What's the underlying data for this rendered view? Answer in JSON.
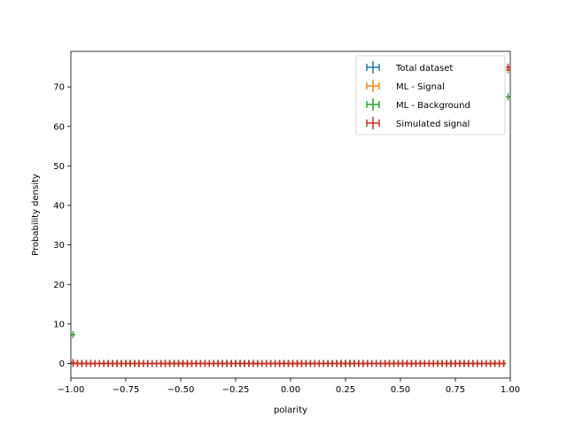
{
  "chart_data": {
    "type": "scatter",
    "xlabel": "polarity",
    "ylabel": "Probability density",
    "xlim": [
      -1.0,
      1.0
    ],
    "ylim": [
      -3.7,
      79.0
    ],
    "x_ticks": [
      "−1.00",
      "−0.75",
      "−0.50",
      "−0.25",
      "0.00",
      "0.25",
      "0.50",
      "0.75",
      "1.00"
    ],
    "x_tick_values": [
      -1.0,
      -0.75,
      -0.5,
      -0.25,
      0.0,
      0.25,
      0.5,
      0.75,
      1.0
    ],
    "y_ticks": [
      "0",
      "10",
      "20",
      "30",
      "40",
      "50",
      "60",
      "70"
    ],
    "y_tick_values": [
      0,
      10,
      20,
      30,
      40,
      50,
      60,
      70
    ],
    "legend_position": "top-right",
    "grid": false,
    "bins": 100,
    "bin_width": 0.02,
    "series": [
      {
        "name": "Total dataset",
        "color": "#1f77b4",
        "points": [
          {
            "x": -0.99,
            "y": 0.3
          },
          {
            "x": 0.99,
            "y": 74.3
          }
        ]
      },
      {
        "name": "ML - Signal",
        "color": "#ff7f0e",
        "points": [
          {
            "x": -0.99,
            "y": 0.3
          },
          {
            "x": 0.99,
            "y": 74.3
          }
        ]
      },
      {
        "name": "ML - Background",
        "color": "#2ca02c",
        "points": [
          {
            "x": -0.99,
            "y": 7.3
          },
          {
            "x": 0.99,
            "y": 67.5
          }
        ]
      },
      {
        "name": "Simulated signal",
        "color": "#d62728",
        "points": [
          {
            "x": -0.99,
            "y": 0.0
          },
          {
            "x": 0.99,
            "y": 75.0
          }
        ]
      }
    ],
    "baseline_value": 0.0
  }
}
